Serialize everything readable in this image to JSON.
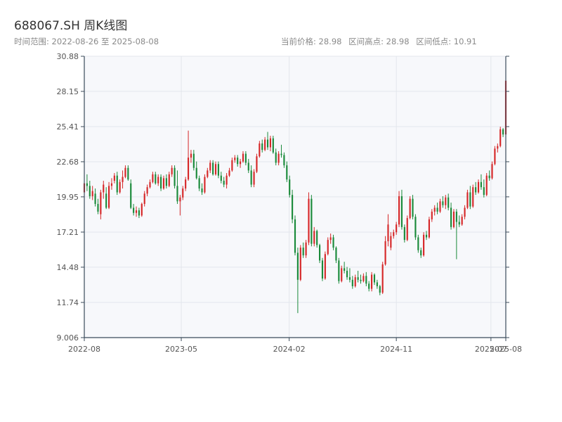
{
  "header": {
    "title": "688067.SH 周K线图",
    "range_label": "时间范围:",
    "range_start": "2022-08-26",
    "range_sep": "至",
    "range_end": "2025-08-08",
    "current_price": "当前价格: 28.98",
    "range_high": "区间高点: 28.98",
    "range_low": "区间低点: 10.91"
  },
  "colors": {
    "up": "#d62728",
    "down": "#1a8a3a",
    "plot_bg": "#f7f8fb",
    "grid": "#e3e6ec",
    "axis": "#3a4a5a"
  },
  "chart_data": {
    "type": "candlestick",
    "title": "688067.SH 周K线图",
    "xlabel": "",
    "ylabel": "",
    "ylim": [
      9.006,
      30.88
    ],
    "y_ticks": [
      "9.006",
      "11.74",
      "14.48",
      "17.21",
      "19.95",
      "22.68",
      "25.41",
      "28.15",
      "30.88"
    ],
    "x_ticks": [
      {
        "label": "2022-08",
        "date": "2022-08-26"
      },
      {
        "label": "2023-05",
        "date": "2023-05-01"
      },
      {
        "label": "2024-02",
        "date": "2024-02-01"
      },
      {
        "label": "2024-11",
        "date": "2024-11-01"
      },
      {
        "label": "2025-07",
        "date": "2025-07-01"
      },
      {
        "label": "2025-08",
        "date": "2025-08-08"
      }
    ],
    "grid": true,
    "legend": "none",
    "candles_date_start": "2022-08-26",
    "candles_date_end": "2025-08-08",
    "candles": [
      {
        "o": 20.3,
        "h": 21.3,
        "l": 19.9,
        "c": 21.0
      },
      {
        "o": 21.0,
        "h": 21.7,
        "l": 20.4,
        "c": 20.8
      },
      {
        "o": 20.8,
        "h": 21.2,
        "l": 19.8,
        "c": 20.0
      },
      {
        "o": 20.0,
        "h": 20.8,
        "l": 19.7,
        "c": 20.4
      },
      {
        "o": 20.2,
        "h": 20.6,
        "l": 19.2,
        "c": 19.4
      },
      {
        "o": 19.4,
        "h": 19.8,
        "l": 18.6,
        "c": 18.8
      },
      {
        "o": 18.6,
        "h": 20.5,
        "l": 18.2,
        "c": 20.3
      },
      {
        "o": 20.3,
        "h": 21.2,
        "l": 19.8,
        "c": 20.9
      },
      {
        "o": 20.2,
        "h": 20.7,
        "l": 19.0,
        "c": 19.1
      },
      {
        "o": 19.1,
        "h": 21.1,
        "l": 19.0,
        "c": 20.8
      },
      {
        "o": 20.8,
        "h": 21.4,
        "l": 20.5,
        "c": 21.0
      },
      {
        "o": 21.2,
        "h": 21.8,
        "l": 21.0,
        "c": 21.6
      },
      {
        "o": 21.6,
        "h": 21.9,
        "l": 20.1,
        "c": 20.3
      },
      {
        "o": 20.3,
        "h": 21.3,
        "l": 20.2,
        "c": 21.1
      },
      {
        "o": 21.1,
        "h": 22.0,
        "l": 20.6,
        "c": 21.5
      },
      {
        "o": 21.5,
        "h": 22.4,
        "l": 21.4,
        "c": 22.2
      },
      {
        "o": 22.2,
        "h": 22.4,
        "l": 21.2,
        "c": 21.3
      },
      {
        "o": 21.0,
        "h": 21.3,
        "l": 19.0,
        "c": 19.1
      },
      {
        "o": 19.1,
        "h": 19.4,
        "l": 18.5,
        "c": 18.7
      },
      {
        "o": 18.7,
        "h": 19.2,
        "l": 18.4,
        "c": 18.9
      },
      {
        "o": 18.9,
        "h": 19.1,
        "l": 18.3,
        "c": 18.5
      },
      {
        "o": 18.5,
        "h": 19.5,
        "l": 18.4,
        "c": 19.4
      },
      {
        "o": 19.4,
        "h": 20.4,
        "l": 19.2,
        "c": 20.2
      },
      {
        "o": 20.2,
        "h": 20.9,
        "l": 20.0,
        "c": 20.7
      },
      {
        "o": 20.7,
        "h": 21.3,
        "l": 20.6,
        "c": 21.1
      },
      {
        "o": 21.1,
        "h": 21.9,
        "l": 21.0,
        "c": 21.7
      },
      {
        "o": 21.7,
        "h": 21.9,
        "l": 20.9,
        "c": 21.0
      },
      {
        "o": 21.0,
        "h": 21.7,
        "l": 20.8,
        "c": 21.5
      },
      {
        "o": 21.5,
        "h": 21.7,
        "l": 20.4,
        "c": 20.6
      },
      {
        "o": 20.6,
        "h": 21.6,
        "l": 20.5,
        "c": 21.4
      },
      {
        "o": 21.4,
        "h": 21.7,
        "l": 20.6,
        "c": 20.8
      },
      {
        "o": 20.8,
        "h": 21.9,
        "l": 20.7,
        "c": 21.7
      },
      {
        "o": 21.7,
        "h": 22.4,
        "l": 21.5,
        "c": 22.2
      },
      {
        "o": 22.2,
        "h": 22.4,
        "l": 20.6,
        "c": 20.8
      },
      {
        "o": 20.8,
        "h": 22.0,
        "l": 19.4,
        "c": 19.6
      },
      {
        "o": 19.6,
        "h": 20.1,
        "l": 18.5,
        "c": 19.9
      },
      {
        "o": 19.9,
        "h": 20.8,
        "l": 19.7,
        "c": 20.6
      },
      {
        "o": 20.6,
        "h": 21.5,
        "l": 20.4,
        "c": 21.3
      },
      {
        "o": 21.3,
        "h": 25.1,
        "l": 21.2,
        "c": 23.0
      },
      {
        "o": 23.0,
        "h": 23.6,
        "l": 22.6,
        "c": 23.3
      },
      {
        "o": 23.3,
        "h": 23.6,
        "l": 22.0,
        "c": 22.2
      },
      {
        "o": 22.2,
        "h": 22.7,
        "l": 21.3,
        "c": 21.4
      },
      {
        "o": 21.4,
        "h": 21.6,
        "l": 20.4,
        "c": 20.6
      },
      {
        "o": 20.6,
        "h": 21.0,
        "l": 20.1,
        "c": 20.3
      },
      {
        "o": 20.3,
        "h": 21.7,
        "l": 20.2,
        "c": 21.5
      },
      {
        "o": 21.5,
        "h": 22.2,
        "l": 21.4,
        "c": 22.0
      },
      {
        "o": 22.0,
        "h": 22.8,
        "l": 21.8,
        "c": 22.6
      },
      {
        "o": 22.6,
        "h": 22.8,
        "l": 21.6,
        "c": 21.7
      },
      {
        "o": 21.7,
        "h": 22.7,
        "l": 21.6,
        "c": 22.5
      },
      {
        "o": 22.5,
        "h": 22.7,
        "l": 21.4,
        "c": 21.6
      },
      {
        "o": 21.6,
        "h": 21.9,
        "l": 21.0,
        "c": 21.2
      },
      {
        "o": 21.2,
        "h": 21.5,
        "l": 20.7,
        "c": 20.9
      },
      {
        "o": 20.9,
        "h": 21.8,
        "l": 20.6,
        "c": 21.6
      },
      {
        "o": 21.6,
        "h": 22.2,
        "l": 21.5,
        "c": 22.0
      },
      {
        "o": 22.0,
        "h": 23.0,
        "l": 21.9,
        "c": 22.8
      },
      {
        "o": 22.8,
        "h": 23.2,
        "l": 22.6,
        "c": 23.0
      },
      {
        "o": 23.0,
        "h": 23.2,
        "l": 22.3,
        "c": 22.5
      },
      {
        "o": 22.5,
        "h": 22.9,
        "l": 22.2,
        "c": 22.7
      },
      {
        "o": 22.7,
        "h": 23.5,
        "l": 22.6,
        "c": 23.3
      },
      {
        "o": 23.3,
        "h": 23.5,
        "l": 22.4,
        "c": 22.6
      },
      {
        "o": 22.6,
        "h": 22.9,
        "l": 21.8,
        "c": 22.0
      },
      {
        "o": 22.0,
        "h": 22.4,
        "l": 20.7,
        "c": 20.9
      },
      {
        "o": 20.9,
        "h": 22.1,
        "l": 20.7,
        "c": 21.9
      },
      {
        "o": 21.9,
        "h": 23.3,
        "l": 21.8,
        "c": 23.1
      },
      {
        "o": 23.1,
        "h": 24.3,
        "l": 23.0,
        "c": 24.1
      },
      {
        "o": 24.1,
        "h": 24.4,
        "l": 23.4,
        "c": 23.6
      },
      {
        "o": 23.6,
        "h": 24.6,
        "l": 23.5,
        "c": 24.4
      },
      {
        "o": 24.4,
        "h": 25.0,
        "l": 23.6,
        "c": 23.8
      },
      {
        "o": 23.8,
        "h": 24.7,
        "l": 23.5,
        "c": 24.5
      },
      {
        "o": 24.5,
        "h": 24.7,
        "l": 23.3,
        "c": 23.4
      },
      {
        "o": 23.4,
        "h": 23.7,
        "l": 22.4,
        "c": 22.6
      },
      {
        "o": 22.6,
        "h": 23.5,
        "l": 22.4,
        "c": 23.3
      },
      {
        "o": 23.3,
        "h": 24.0,
        "l": 23.0,
        "c": 23.2
      },
      {
        "o": 23.2,
        "h": 23.4,
        "l": 22.2,
        "c": 22.4
      },
      {
        "o": 22.4,
        "h": 22.7,
        "l": 21.1,
        "c": 21.3
      },
      {
        "o": 21.3,
        "h": 21.6,
        "l": 19.9,
        "c": 20.1
      },
      {
        "o": 20.1,
        "h": 20.5,
        "l": 17.9,
        "c": 18.2
      },
      {
        "o": 18.2,
        "h": 18.5,
        "l": 15.4,
        "c": 15.6
      },
      {
        "o": 15.6,
        "h": 16.0,
        "l": 10.91,
        "c": 13.5
      },
      {
        "o": 13.5,
        "h": 16.2,
        "l": 13.4,
        "c": 16.0
      },
      {
        "o": 16.0,
        "h": 16.4,
        "l": 15.2,
        "c": 15.4
      },
      {
        "o": 15.4,
        "h": 16.6,
        "l": 15.2,
        "c": 16.4
      },
      {
        "o": 16.4,
        "h": 20.3,
        "l": 16.2,
        "c": 19.8
      },
      {
        "o": 19.8,
        "h": 20.1,
        "l": 16.1,
        "c": 16.3
      },
      {
        "o": 16.3,
        "h": 17.6,
        "l": 16.1,
        "c": 17.3
      },
      {
        "o": 17.3,
        "h": 17.4,
        "l": 16.0,
        "c": 16.2
      },
      {
        "o": 16.2,
        "h": 16.3,
        "l": 14.8,
        "c": 15.0
      },
      {
        "o": 15.0,
        "h": 15.2,
        "l": 13.4,
        "c": 13.6
      },
      {
        "o": 13.6,
        "h": 15.7,
        "l": 13.5,
        "c": 15.5
      },
      {
        "o": 15.5,
        "h": 16.8,
        "l": 15.4,
        "c": 16.6
      },
      {
        "o": 16.6,
        "h": 17.1,
        "l": 16.3,
        "c": 16.8
      },
      {
        "o": 16.8,
        "h": 17.0,
        "l": 15.8,
        "c": 16.0
      },
      {
        "o": 16.0,
        "h": 16.1,
        "l": 14.8,
        "c": 15.0
      },
      {
        "o": 15.0,
        "h": 15.2,
        "l": 13.2,
        "c": 13.4
      },
      {
        "o": 13.4,
        "h": 14.6,
        "l": 13.3,
        "c": 14.4
      },
      {
        "o": 14.4,
        "h": 14.9,
        "l": 14.0,
        "c": 14.2
      },
      {
        "o": 14.2,
        "h": 14.5,
        "l": 13.5,
        "c": 13.7
      },
      {
        "o": 13.7,
        "h": 14.4,
        "l": 13.3,
        "c": 13.5
      },
      {
        "o": 13.5,
        "h": 13.8,
        "l": 12.8,
        "c": 13.0
      },
      {
        "o": 13.0,
        "h": 13.9,
        "l": 12.9,
        "c": 13.7
      },
      {
        "o": 13.7,
        "h": 14.2,
        "l": 13.3,
        "c": 13.5
      },
      {
        "o": 13.5,
        "h": 13.9,
        "l": 13.2,
        "c": 13.4
      },
      {
        "o": 13.4,
        "h": 14.0,
        "l": 13.3,
        "c": 13.8
      },
      {
        "o": 13.8,
        "h": 14.1,
        "l": 13.0,
        "c": 13.2
      },
      {
        "o": 13.2,
        "h": 13.4,
        "l": 12.6,
        "c": 12.8
      },
      {
        "o": 12.8,
        "h": 14.1,
        "l": 12.6,
        "c": 13.9
      },
      {
        "o": 13.9,
        "h": 14.0,
        "l": 13.1,
        "c": 13.3
      },
      {
        "o": 13.3,
        "h": 13.5,
        "l": 12.8,
        "c": 13.0
      },
      {
        "o": 13.0,
        "h": 13.1,
        "l": 12.3,
        "c": 12.5
      },
      {
        "o": 12.5,
        "h": 14.9,
        "l": 12.4,
        "c": 14.7
      },
      {
        "o": 14.7,
        "h": 16.9,
        "l": 14.6,
        "c": 16.5
      },
      {
        "o": 16.5,
        "h": 18.6,
        "l": 16.1,
        "c": 17.8
      },
      {
        "o": 16.0,
        "h": 17.2,
        "l": 15.8,
        "c": 16.9
      },
      {
        "o": 16.9,
        "h": 17.4,
        "l": 16.7,
        "c": 17.2
      },
      {
        "o": 17.2,
        "h": 18.0,
        "l": 17.0,
        "c": 17.8
      },
      {
        "o": 17.8,
        "h": 20.4,
        "l": 17.6,
        "c": 20.0
      },
      {
        "o": 20.0,
        "h": 20.5,
        "l": 17.4,
        "c": 17.6
      },
      {
        "o": 17.6,
        "h": 17.8,
        "l": 16.4,
        "c": 16.6
      },
      {
        "o": 16.6,
        "h": 18.5,
        "l": 16.5,
        "c": 18.3
      },
      {
        "o": 18.3,
        "h": 20.0,
        "l": 18.2,
        "c": 19.8
      },
      {
        "o": 19.8,
        "h": 20.1,
        "l": 18.2,
        "c": 18.4
      },
      {
        "o": 18.4,
        "h": 18.6,
        "l": 16.6,
        "c": 16.8
      },
      {
        "o": 16.8,
        "h": 17.0,
        "l": 15.6,
        "c": 15.8
      },
      {
        "o": 15.8,
        "h": 16.0,
        "l": 15.2,
        "c": 15.4
      },
      {
        "o": 15.4,
        "h": 17.2,
        "l": 15.3,
        "c": 17.0
      },
      {
        "o": 17.0,
        "h": 17.3,
        "l": 16.6,
        "c": 16.8
      },
      {
        "o": 16.8,
        "h": 18.4,
        "l": 16.7,
        "c": 18.2
      },
      {
        "o": 18.2,
        "h": 19.0,
        "l": 18.0,
        "c": 18.8
      },
      {
        "o": 18.8,
        "h": 19.3,
        "l": 18.5,
        "c": 19.1
      },
      {
        "o": 19.1,
        "h": 19.5,
        "l": 18.6,
        "c": 18.8
      },
      {
        "o": 18.8,
        "h": 19.8,
        "l": 18.7,
        "c": 19.6
      },
      {
        "o": 19.6,
        "h": 20.0,
        "l": 19.1,
        "c": 19.3
      },
      {
        "o": 19.3,
        "h": 20.1,
        "l": 19.0,
        "c": 19.9
      },
      {
        "o": 19.9,
        "h": 20.2,
        "l": 18.9,
        "c": 19.1
      },
      {
        "o": 19.1,
        "h": 19.5,
        "l": 17.4,
        "c": 17.6
      },
      {
        "o": 17.6,
        "h": 19.0,
        "l": 17.5,
        "c": 18.8
      },
      {
        "o": 18.8,
        "h": 19.0,
        "l": 15.1,
        "c": 18.0
      },
      {
        "o": 18.0,
        "h": 18.5,
        "l": 17.6,
        "c": 17.8
      },
      {
        "o": 17.8,
        "h": 18.6,
        "l": 17.7,
        "c": 18.4
      },
      {
        "o": 18.4,
        "h": 19.3,
        "l": 18.2,
        "c": 19.1
      },
      {
        "o": 19.1,
        "h": 20.5,
        "l": 19.0,
        "c": 20.3
      },
      {
        "o": 20.3,
        "h": 20.8,
        "l": 19.0,
        "c": 19.2
      },
      {
        "o": 19.2,
        "h": 20.9,
        "l": 19.1,
        "c": 20.7
      },
      {
        "o": 20.7,
        "h": 21.1,
        "l": 20.1,
        "c": 20.3
      },
      {
        "o": 20.3,
        "h": 21.3,
        "l": 20.2,
        "c": 21.1
      },
      {
        "o": 21.1,
        "h": 21.7,
        "l": 20.5,
        "c": 20.7
      },
      {
        "o": 20.7,
        "h": 21.3,
        "l": 19.9,
        "c": 20.1
      },
      {
        "o": 20.1,
        "h": 21.8,
        "l": 20.0,
        "c": 21.6
      },
      {
        "o": 21.6,
        "h": 22.0,
        "l": 21.2,
        "c": 21.4
      },
      {
        "o": 21.4,
        "h": 22.7,
        "l": 21.3,
        "c": 22.5
      },
      {
        "o": 22.5,
        "h": 23.9,
        "l": 22.4,
        "c": 23.7
      },
      {
        "o": 23.7,
        "h": 24.1,
        "l": 23.4,
        "c": 23.9
      },
      {
        "o": 23.9,
        "h": 25.4,
        "l": 23.8,
        "c": 25.2
      },
      {
        "o": 25.2,
        "h": 25.3,
        "l": 24.6,
        "c": 24.8
      },
      {
        "o": 24.8,
        "h": 28.98,
        "l": 24.7,
        "c": 28.98
      }
    ]
  }
}
